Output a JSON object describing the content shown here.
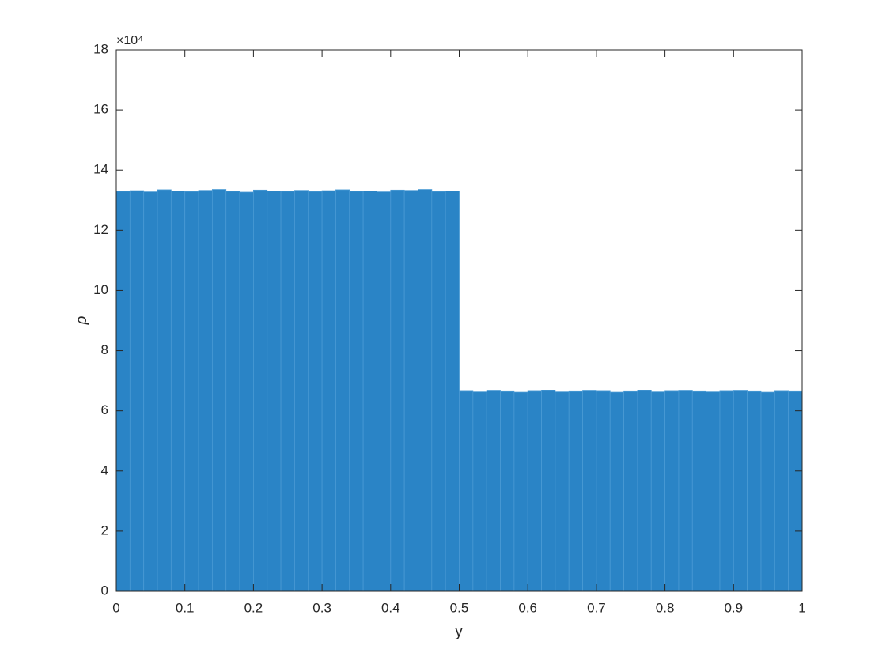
{
  "chart_data": {
    "type": "histogram",
    "xlabel": "y",
    "ylabel": "ρ",
    "y_exponent_label": "×10⁴",
    "bins": [
      0,
      0.02,
      0.04,
      0.06,
      0.08,
      0.1,
      0.12,
      0.14,
      0.16,
      0.18,
      0.2,
      0.22,
      0.24,
      0.26,
      0.28,
      0.3,
      0.32,
      0.34,
      0.36,
      0.38,
      0.4,
      0.42,
      0.44,
      0.46,
      0.48,
      0.5,
      0.52,
      0.54,
      0.56,
      0.58,
      0.6,
      0.62,
      0.64,
      0.66,
      0.68,
      0.7,
      0.72,
      0.74,
      0.76,
      0.78,
      0.8,
      0.82,
      0.84,
      0.86,
      0.88,
      0.9,
      0.92,
      0.94,
      0.96,
      0.98,
      1
    ],
    "values": [
      13.3,
      13.32,
      13.28,
      13.35,
      13.31,
      13.29,
      13.33,
      13.36,
      13.3,
      13.27,
      13.34,
      13.31,
      13.3,
      13.33,
      13.29,
      13.32,
      13.35,
      13.3,
      13.31,
      13.28,
      13.34,
      13.33,
      13.36,
      13.29,
      13.31,
      6.65,
      6.63,
      6.66,
      6.64,
      6.62,
      6.65,
      6.67,
      6.63,
      6.64,
      6.66,
      6.65,
      6.62,
      6.64,
      6.67,
      6.63,
      6.65,
      6.66,
      6.64,
      6.63,
      6.65,
      6.66,
      6.64,
      6.62,
      6.65,
      6.64
    ],
    "color": "#2a84c6",
    "xlim": [
      0,
      1
    ],
    "xticks": [
      0,
      0.1,
      0.2,
      0.3,
      0.4,
      0.5,
      0.6,
      0.7,
      0.8,
      0.9,
      1
    ],
    "ylim": [
      0,
      18
    ],
    "yticks": [
      0,
      2,
      4,
      6,
      8,
      10,
      12,
      14,
      16,
      18
    ],
    "grid": false
  }
}
